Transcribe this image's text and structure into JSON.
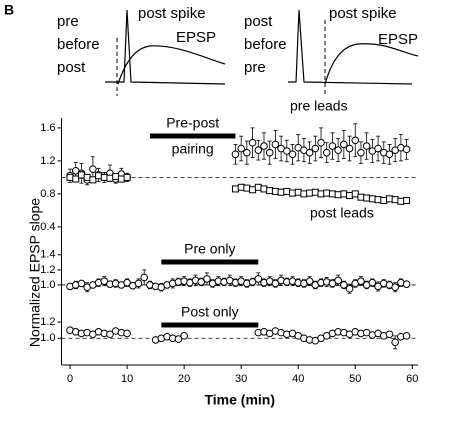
{
  "panel_label": "B",
  "insets": [
    {
      "labels": [
        "pre",
        "before",
        "post"
      ],
      "spike": "post spike",
      "epsp": "EPSP"
    },
    {
      "labels": [
        "post",
        "before",
        "pre"
      ],
      "spike": "post spike",
      "epsp": "EPSP"
    }
  ],
  "chart_data": [
    {
      "type": "scatter",
      "annotations": [
        "Pre-post",
        "pairing"
      ],
      "period": [
        14,
        29
      ],
      "refline": 1,
      "xlim": [
        -1.5,
        61
      ],
      "ylim": [
        0.35,
        1.72
      ],
      "yticks": [
        0.4,
        0.8,
        1.2,
        1.6
      ],
      "series": [
        {
          "name": "pre leads",
          "marker": "circle",
          "x": [
            0,
            1,
            2,
            3,
            4,
            5,
            6,
            7,
            8,
            9,
            10,
            29,
            30,
            31,
            32,
            33,
            34,
            35,
            36,
            37,
            38,
            39,
            40,
            41,
            42,
            43,
            44,
            45,
            46,
            47,
            48,
            49,
            50,
            51,
            52,
            53,
            54,
            55,
            56,
            57,
            58,
            59
          ],
          "values": [
            1.02,
            1.08,
            1.05,
            0.97,
            1.1,
            1.03,
            1.0,
            1.05,
            0.98,
            1.04,
            1.0,
            1.28,
            1.35,
            1.3,
            1.42,
            1.33,
            1.38,
            1.3,
            1.4,
            1.35,
            1.32,
            1.28,
            1.36,
            1.33,
            1.3,
            1.35,
            1.42,
            1.3,
            1.38,
            1.33,
            1.4,
            1.35,
            1.45,
            1.3,
            1.38,
            1.32,
            1.35,
            1.3,
            1.28,
            1.33,
            1.36,
            1.34
          ],
          "errors": [
            0.08,
            0.1,
            0.12,
            0.06,
            0.15,
            0.08,
            0.06,
            0.1,
            0.05,
            0.07,
            0.05,
            0.12,
            0.15,
            0.14,
            0.18,
            0.12,
            0.16,
            0.14,
            0.17,
            0.15,
            0.13,
            0.12,
            0.16,
            0.14,
            0.13,
            0.15,
            0.18,
            0.12,
            0.16,
            0.14,
            0.17,
            0.15,
            0.2,
            0.13,
            0.16,
            0.14,
            0.15,
            0.13,
            0.12,
            0.14,
            0.16,
            0.12
          ]
        },
        {
          "name": "post leads",
          "marker": "square",
          "x": [
            0,
            1,
            2,
            3,
            4,
            5,
            6,
            7,
            8,
            9,
            10,
            29,
            30,
            31,
            32,
            33,
            34,
            35,
            36,
            37,
            38,
            39,
            40,
            41,
            42,
            43,
            44,
            45,
            46,
            47,
            48,
            49,
            50,
            51,
            52,
            53,
            54,
            55,
            56,
            57,
            58,
            59
          ],
          "values": [
            1.0,
            0.98,
            1.03,
            1.0,
            0.97,
            1.02,
            1.0,
            0.99,
            1.01,
            0.98,
            1.0,
            0.86,
            0.88,
            0.87,
            0.85,
            0.88,
            0.86,
            0.84,
            0.83,
            0.82,
            0.83,
            0.81,
            0.82,
            0.8,
            0.81,
            0.82,
            0.8,
            0.81,
            0.8,
            0.79,
            0.8,
            0.78,
            0.8,
            0.76,
            0.75,
            0.74,
            0.73,
            0.72,
            0.74,
            0.73,
            0.71,
            0.72
          ],
          "errors": [
            0.03,
            0.03,
            0.04,
            0.03,
            0.03,
            0.03,
            0.03,
            0.03,
            0.03,
            0.03,
            0.03,
            0.03,
            0.03,
            0.03,
            0.03,
            0.03,
            0.03,
            0.03,
            0.03,
            0.03,
            0.03,
            0.03,
            0.03,
            0.03,
            0.03,
            0.03,
            0.03,
            0.03,
            0.03,
            0.03,
            0.03,
            0.03,
            0.03,
            0.03,
            0.03,
            0.03,
            0.03,
            0.03,
            0.03,
            0.03,
            0.03,
            0.03
          ]
        }
      ]
    },
    {
      "type": "scatter",
      "annotations": [
        "Pre only"
      ],
      "period": [
        16,
        33
      ],
      "refline": 1,
      "ylabel": "Normalized EPSP slope",
      "xlim": [
        -1.5,
        61
      ],
      "ylim": [
        0.88,
        1.45
      ],
      "yticks": [
        {
          "value": 1,
          "label": "1.0"
        },
        1.2,
        1.4
      ],
      "series": [
        {
          "marker": "circle",
          "x": [
            0,
            1,
            2,
            3,
            4,
            5,
            6,
            7,
            8,
            9,
            10,
            11,
            12,
            13,
            14,
            15,
            16,
            17,
            18,
            19,
            20,
            21,
            22,
            23,
            24,
            25,
            26,
            27,
            28,
            29,
            30,
            31,
            32,
            33,
            34,
            35,
            36,
            37,
            38,
            39,
            40,
            41,
            42,
            43,
            44,
            45,
            46,
            47,
            48,
            49,
            50,
            51,
            52,
            53,
            54,
            55,
            56,
            57,
            58,
            59
          ],
          "values": [
            0.98,
            1.0,
            1.02,
            0.97,
            1.0,
            1.03,
            1.05,
            1.01,
            1.02,
            1.0,
            1.03,
            0.99,
            1.02,
            1.1,
            1.0,
            0.98,
            0.97,
            1.0,
            1.02,
            1.04,
            1.05,
            1.03,
            1.06,
            1.04,
            1.08,
            1.02,
            1.05,
            1.04,
            1.06,
            1.03,
            1.05,
            1.02,
            1.04,
            1.08,
            1.03,
            1.05,
            1.02,
            1.06,
            1.04,
            1.05,
            1.03,
            1.02,
            1.05,
            1.0,
            1.03,
            1.04,
            1.02,
            1.06,
            1.0,
            0.95,
            1.02,
            1.05,
            1.0,
            1.03,
            0.98,
            1.02,
            1.0,
            0.97,
            1.03,
            1.01
          ],
          "errors": [
            0.04,
            0.05,
            0.04,
            0.06,
            0.04,
            0.05,
            0.06,
            0.04,
            0.05,
            0.04,
            0.05,
            0.04,
            0.06,
            0.1,
            0.05,
            0.04,
            0.05,
            0.04,
            0.06,
            0.05,
            0.06,
            0.05,
            0.07,
            0.05,
            0.08,
            0.05,
            0.06,
            0.05,
            0.07,
            0.05,
            0.06,
            0.05,
            0.05,
            0.08,
            0.05,
            0.06,
            0.05,
            0.07,
            0.05,
            0.06,
            0.05,
            0.05,
            0.06,
            0.05,
            0.05,
            0.06,
            0.05,
            0.07,
            0.05,
            0.06,
            0.05,
            0.06,
            0.05,
            0.05,
            0.06,
            0.05,
            0.05,
            0.06,
            0.05,
            0.04
          ]
        }
      ]
    },
    {
      "type": "scatter",
      "annotations": [
        "Post only"
      ],
      "period": [
        16,
        33
      ],
      "refline": 1,
      "xlabel": "Time (min)",
      "xlim": [
        -1.5,
        61
      ],
      "xticks": [
        0,
        10,
        20,
        30,
        40,
        50,
        60
      ],
      "ylim": [
        0.88,
        1.3
      ],
      "yticks": [
        {
          "value": 1,
          "label": "1.0"
        },
        1.2
      ],
      "series": [
        {
          "marker": "circle",
          "x": [
            0,
            1,
            2,
            3,
            4,
            5,
            6,
            7,
            8,
            9,
            10,
            15,
            16,
            17,
            18,
            19,
            20,
            33,
            34,
            35,
            36,
            37,
            38,
            39,
            40,
            41,
            42,
            43,
            44,
            45,
            46,
            47,
            48,
            49,
            50,
            51,
            52,
            53,
            54,
            55,
            56,
            57,
            58,
            59
          ],
          "values": [
            1.1,
            1.08,
            1.06,
            1.07,
            1.05,
            1.08,
            1.06,
            1.05,
            1.09,
            1.07,
            1.06,
            0.98,
            1.0,
            1.02,
            1.0,
            0.99,
            1.03,
            1.07,
            1.08,
            1.06,
            1.09,
            1.07,
            1.05,
            1.06,
            1.03,
            1.0,
            0.98,
            0.97,
            1.0,
            1.03,
            1.06,
            1.08,
            1.07,
            1.05,
            1.08,
            1.06,
            1.07,
            1.04,
            1.06,
            1.03,
            1.05,
            0.95,
            1.02,
            1.03
          ],
          "errors": [
            0.03,
            0.03,
            0.03,
            0.03,
            0.03,
            0.03,
            0.03,
            0.03,
            0.03,
            0.03,
            0.03,
            0.03,
            0.03,
            0.03,
            0.03,
            0.03,
            0.03,
            0.03,
            0.03,
            0.03,
            0.03,
            0.03,
            0.03,
            0.03,
            0.03,
            0.03,
            0.03,
            0.03,
            0.03,
            0.03,
            0.03,
            0.03,
            0.03,
            0.03,
            0.03,
            0.03,
            0.03,
            0.03,
            0.03,
            0.03,
            0.03,
            0.08,
            0.03,
            0.03
          ]
        }
      ]
    }
  ]
}
